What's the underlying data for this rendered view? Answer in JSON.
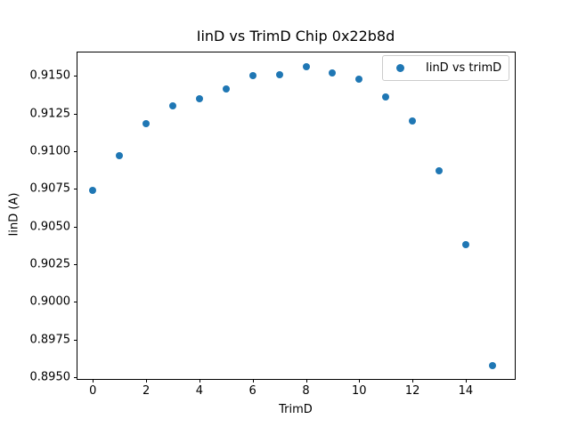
{
  "figure": {
    "background": "#ffffff",
    "text_color": "#000000"
  },
  "chart_data": {
    "type": "scatter",
    "title": "IinD vs TrimD Chip 0x22b8d",
    "xlabel": "TrimD",
    "ylabel": "IinD (A)",
    "grid": false,
    "marker": "circle",
    "series": [
      {
        "name": "IinD vs trimD",
        "color": "#1f77b4",
        "x": [
          0,
          1,
          2,
          3,
          4,
          5,
          6,
          7,
          8,
          9,
          10,
          11,
          12,
          13,
          14,
          15
        ],
        "y": [
          0.9074,
          0.9097,
          0.9118,
          0.913,
          0.9135,
          0.9141,
          0.915,
          0.9151,
          0.9156,
          0.9152,
          0.9148,
          0.9136,
          0.912,
          0.9087,
          0.9038,
          0.8958
        ]
      }
    ],
    "xticks": [
      0,
      2,
      4,
      6,
      8,
      10,
      12,
      14
    ],
    "yticks": [
      0.895,
      0.8975,
      0.9,
      0.9025,
      0.905,
      0.9075,
      0.91,
      0.9125,
      0.915
    ],
    "xlim": [
      -0.578,
      15.842
    ],
    "ylim": [
      0.894894,
      0.916546
    ],
    "legend": {
      "position": "upper-right",
      "label": "IinD vs trimD"
    }
  }
}
